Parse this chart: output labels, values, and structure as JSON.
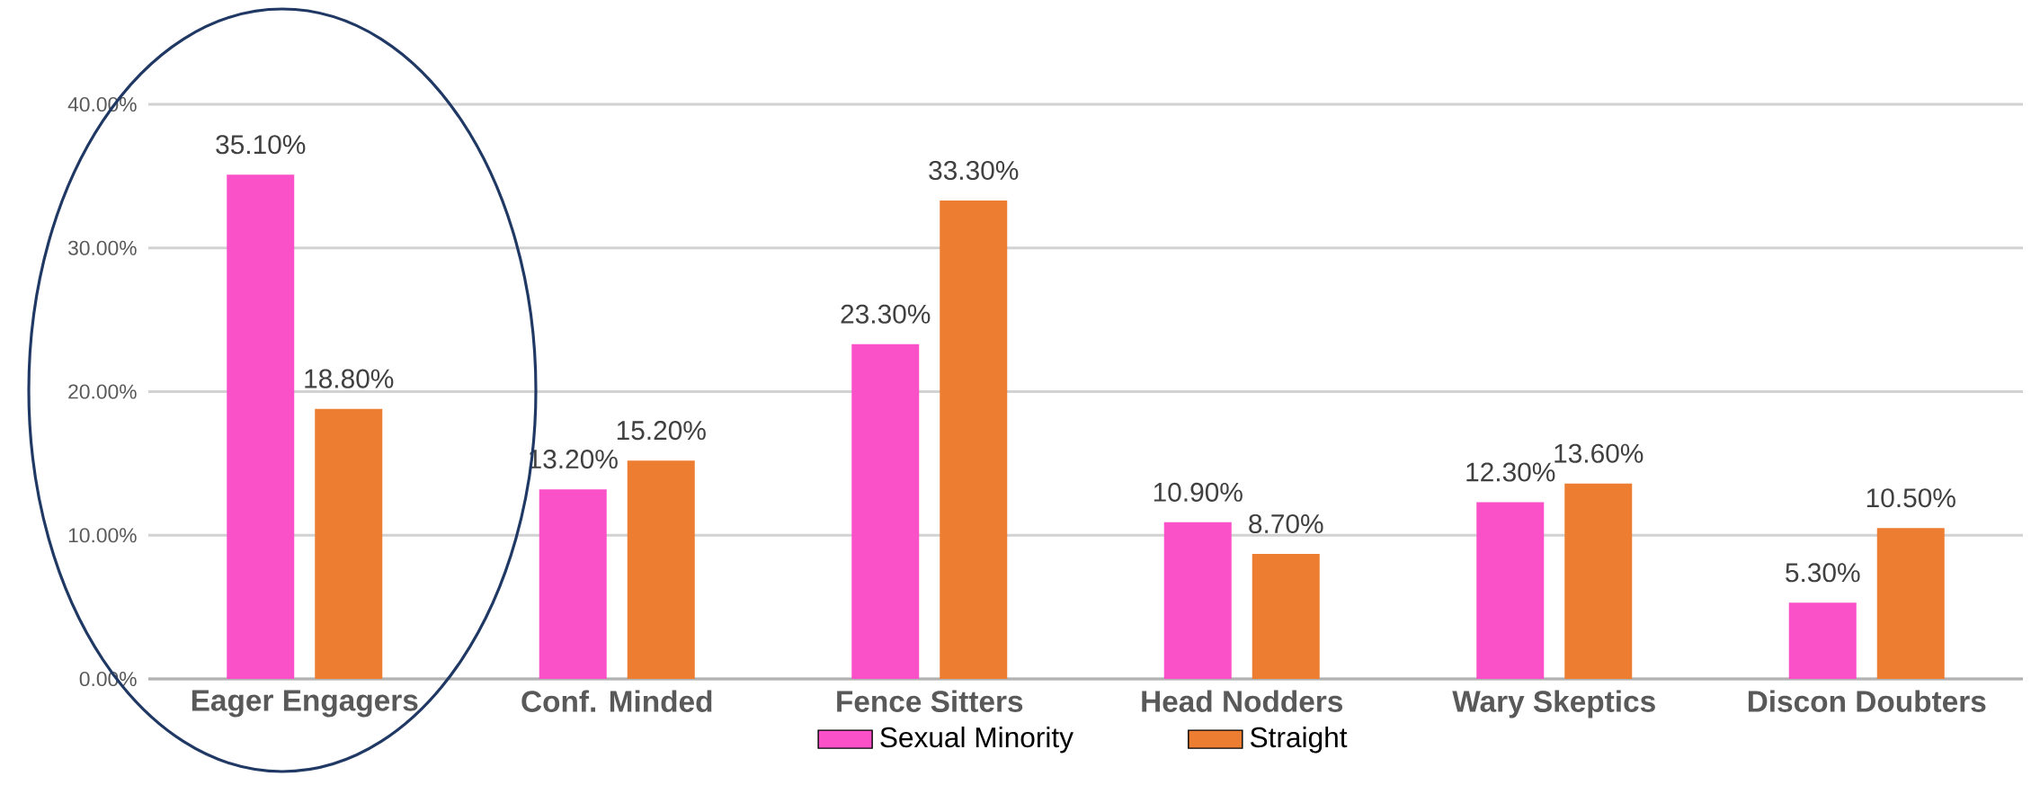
{
  "chart_data": {
    "type": "bar",
    "categories": [
      "Eager Engagers",
      "Conf. Minded",
      "Fence Sitters",
      "Head Nodders",
      "Wary Skeptics",
      "Discon Doubters"
    ],
    "series": [
      {
        "name": "Sexual Minority",
        "color": "#fa50c8",
        "values": [
          35.1,
          13.2,
          23.3,
          10.9,
          12.3,
          5.3
        ],
        "value_labels": [
          "35.10%",
          "13.20%",
          "23.30%",
          "10.90%",
          "12.30%",
          "5.30%"
        ]
      },
      {
        "name": "Straight",
        "color": "#ed7d31",
        "values": [
          18.8,
          15.2,
          33.3,
          8.7,
          13.6,
          10.5
        ],
        "value_labels": [
          "18.80%",
          "15.20%",
          "33.30%",
          "8.70%",
          "13.60%",
          "10.50%"
        ]
      }
    ],
    "ylim": [
      0,
      40
    ],
    "yticks": [
      {
        "value": 0,
        "label": "0.00%"
      },
      {
        "value": 10,
        "label": "10.00%"
      },
      {
        "value": 20,
        "label": "20.00%"
      },
      {
        "value": 30,
        "label": "30.00%"
      },
      {
        "value": 40,
        "label": "40.00%"
      }
    ],
    "grid": "y",
    "legend": "bottom"
  }
}
